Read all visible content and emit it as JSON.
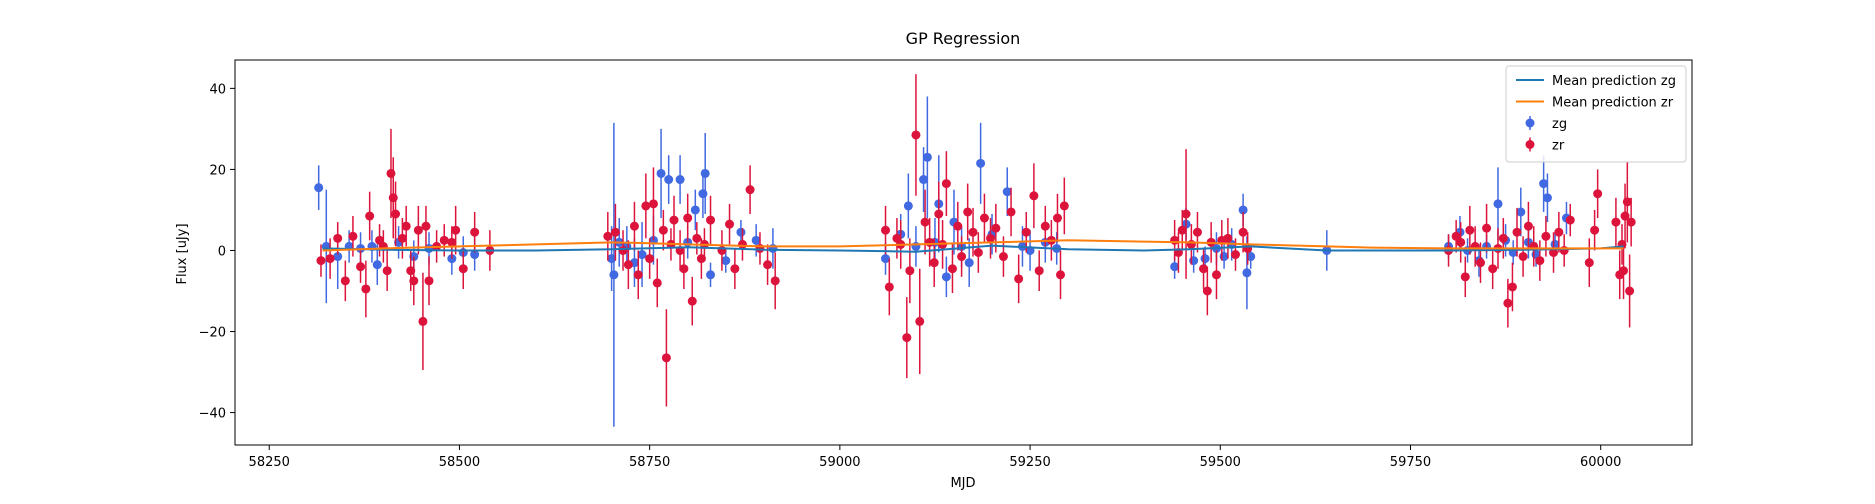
{
  "chart_data": {
    "type": "scatter",
    "title": "GP Regression",
    "xlabel": "MJD",
    "ylabel": "Flux [uJy]",
    "xlim": [
      58205,
      60120
    ],
    "ylim": [
      -48,
      47
    ],
    "xticks": [
      58250,
      58500,
      58750,
      59000,
      59250,
      59500,
      59750,
      60000
    ],
    "yticks": [
      -40,
      -20,
      0,
      20,
      40
    ],
    "grid": false,
    "legend_position": "top-right",
    "colors": {
      "mean_zg": "#1f77b4",
      "mean_zr": "#ff7f0e",
      "zg": "#4169e1",
      "zr": "#dc143c"
    },
    "legend": [
      {
        "label": "Mean prediction zg",
        "kind": "line",
        "color_key": "mean_zg"
      },
      {
        "label": "Mean prediction zr",
        "kind": "line",
        "color_key": "mean_zr"
      },
      {
        "label": "zg",
        "kind": "errorbar",
        "color_key": "zg"
      },
      {
        "label": "zr",
        "kind": "errorbar",
        "color_key": "zr"
      }
    ],
    "series": [
      {
        "name": "Mean prediction zg",
        "kind": "line",
        "color_key": "mean_zg",
        "x": [
          58320,
          58400,
          58500,
          58600,
          58700,
          58800,
          58900,
          59000,
          59100,
          59200,
          59300,
          59400,
          59460,
          59540,
          59640,
          59700,
          59800,
          59900,
          60000,
          60030
        ],
        "y": [
          0.5,
          0.2,
          0.0,
          0.0,
          0.3,
          0.8,
          0.2,
          0.0,
          -0.3,
          1.2,
          0.3,
          0.0,
          0.3,
          1.0,
          0.0,
          0.0,
          0.0,
          0.2,
          0.5,
          1.0
        ]
      },
      {
        "name": "Mean prediction zr",
        "kind": "line",
        "color_key": "mean_zr",
        "x": [
          58320,
          58400,
          58500,
          58600,
          58700,
          58750,
          58800,
          58900,
          59000,
          59100,
          59200,
          59300,
          59400,
          59460,
          59540,
          59640,
          59700,
          59800,
          59900,
          60000,
          60030
        ],
        "y": [
          0.0,
          0.5,
          1.0,
          1.5,
          2.0,
          1.8,
          1.5,
          1.0,
          1.0,
          1.5,
          2.0,
          2.5,
          2.2,
          2.0,
          1.5,
          1.0,
          0.7,
          0.5,
          0.5,
          0.5,
          0.5
        ]
      },
      {
        "name": "zg",
        "kind": "errorbar",
        "color_key": "zg",
        "points": [
          [
            58315,
            15.5,
            5.5
          ],
          [
            58325,
            1.0,
            14
          ],
          [
            58340,
            -1.5,
            8
          ],
          [
            58355,
            1.0,
            4
          ],
          [
            58370,
            0.5,
            4
          ],
          [
            58385,
            1.0,
            4
          ],
          [
            58392,
            -3.5,
            5
          ],
          [
            58420,
            2.0,
            4
          ],
          [
            58440,
            -1.5,
            4
          ],
          [
            58460,
            0.5,
            4
          ],
          [
            58490,
            -2.0,
            4
          ],
          [
            58505,
            -0.5,
            4
          ],
          [
            58520,
            -1.0,
            4
          ],
          [
            58700,
            -2.0,
            8
          ],
          [
            58703,
            -6.0,
            37.5
          ],
          [
            58710,
            2.0,
            6
          ],
          [
            58720,
            1.0,
            5
          ],
          [
            58730,
            -3.0,
            6
          ],
          [
            58740,
            -1.0,
            8
          ],
          [
            58755,
            2.5,
            6
          ],
          [
            58765,
            19.0,
            11
          ],
          [
            58775,
            17.5,
            6
          ],
          [
            58790,
            17.5,
            6
          ],
          [
            58800,
            2.0,
            4
          ],
          [
            58810,
            10.0,
            5
          ],
          [
            58820,
            14.0,
            6
          ],
          [
            58823,
            19.0,
            10
          ],
          [
            58830,
            -6.0,
            3
          ],
          [
            58850,
            -2.5,
            3
          ],
          [
            58870,
            4.5,
            3
          ],
          [
            58890,
            2.5,
            4
          ],
          [
            58912,
            0.5,
            5
          ],
          [
            59060,
            -2.0,
            4
          ],
          [
            59080,
            4.0,
            5
          ],
          [
            59090,
            11.0,
            8
          ],
          [
            59100,
            1.0,
            5
          ],
          [
            59110,
            17.5,
            8
          ],
          [
            59115,
            23.0,
            15
          ],
          [
            59125,
            2.0,
            6
          ],
          [
            59130,
            11.5,
            12
          ],
          [
            59140,
            -6.5,
            5
          ],
          [
            59150,
            7.0,
            8
          ],
          [
            59160,
            1.0,
            5
          ],
          [
            59170,
            -3.0,
            6
          ],
          [
            59185,
            21.5,
            10
          ],
          [
            59200,
            4.0,
            5
          ],
          [
            59220,
            14.5,
            6
          ],
          [
            59240,
            1.0,
            5
          ],
          [
            59250,
            0.0,
            5
          ],
          [
            59270,
            2.0,
            5
          ],
          [
            59285,
            0.5,
            4
          ],
          [
            59440,
            -4.0,
            3
          ],
          [
            59455,
            6.5,
            4
          ],
          [
            59465,
            -2.5,
            3
          ],
          [
            59480,
            -2.0,
            3
          ],
          [
            59495,
            0.5,
            4
          ],
          [
            59505,
            -1.5,
            3
          ],
          [
            59515,
            1.5,
            4
          ],
          [
            59530,
            10.0,
            4
          ],
          [
            59535,
            -5.5,
            9
          ],
          [
            59540,
            -1.5,
            3
          ],
          [
            59640,
            0.0,
            5
          ],
          [
            59800,
            1.0,
            3
          ],
          [
            59815,
            4.5,
            4
          ],
          [
            59825,
            0.0,
            3
          ],
          [
            59840,
            -2.5,
            4
          ],
          [
            59850,
            1.0,
            3
          ],
          [
            59865,
            11.5,
            9
          ],
          [
            59875,
            2.5,
            4
          ],
          [
            59885,
            -0.5,
            3
          ],
          [
            59895,
            9.5,
            6
          ],
          [
            59905,
            2.0,
            4
          ],
          [
            59915,
            -1.0,
            3
          ],
          [
            59925,
            16.5,
            7
          ],
          [
            59930,
            13.0,
            6
          ],
          [
            59940,
            1.5,
            3
          ],
          [
            59955,
            8.0,
            4
          ]
        ]
      },
      {
        "name": "zr",
        "kind": "errorbar",
        "color_key": "zr",
        "points": [
          [
            58318,
            -2.5,
            4
          ],
          [
            58330,
            -2.0,
            5
          ],
          [
            58340,
            3.0,
            4
          ],
          [
            58350,
            -7.5,
            5
          ],
          [
            58360,
            3.5,
            5
          ],
          [
            58370,
            -4.0,
            4
          ],
          [
            58377,
            -9.5,
            7
          ],
          [
            58382,
            8.5,
            6
          ],
          [
            58395,
            2.5,
            4
          ],
          [
            58400,
            1.0,
            4
          ],
          [
            58405,
            -5.0,
            5
          ],
          [
            58410,
            19.0,
            11
          ],
          [
            58413,
            13.0,
            10
          ],
          [
            58416,
            9.0,
            8
          ],
          [
            58425,
            3.0,
            5
          ],
          [
            58430,
            6.0,
            5
          ],
          [
            58436,
            -5.0,
            5
          ],
          [
            58440,
            -7.5,
            6
          ],
          [
            58446,
            5.0,
            6
          ],
          [
            58452,
            -17.5,
            12
          ],
          [
            58456,
            6.0,
            5
          ],
          [
            58460,
            -7.5,
            6
          ],
          [
            58470,
            1.0,
            4
          ],
          [
            58480,
            2.5,
            4
          ],
          [
            58490,
            2.0,
            4
          ],
          [
            58495,
            5.0,
            6
          ],
          [
            58505,
            -4.5,
            5
          ],
          [
            58520,
            4.5,
            5
          ],
          [
            58540,
            0.0,
            5
          ],
          [
            58695,
            3.5,
            6
          ],
          [
            58705,
            4.5,
            7
          ],
          [
            58715,
            0.0,
            5
          ],
          [
            58722,
            -3.5,
            6
          ],
          [
            58730,
            6.0,
            6
          ],
          [
            58735,
            -6.0,
            6
          ],
          [
            58745,
            11.0,
            8
          ],
          [
            58750,
            -2.0,
            5
          ],
          [
            58755,
            11.5,
            9
          ],
          [
            58760,
            -8.0,
            6
          ],
          [
            58768,
            5.0,
            5
          ],
          [
            58772,
            -26.5,
            12
          ],
          [
            58778,
            1.5,
            4
          ],
          [
            58782,
            7.5,
            6
          ],
          [
            58790,
            0.0,
            5
          ],
          [
            58795,
            -4.5,
            5
          ],
          [
            58800,
            8.0,
            6
          ],
          [
            58806,
            -12.5,
            6
          ],
          [
            58812,
            3.0,
            4
          ],
          [
            58818,
            -2.0,
            5
          ],
          [
            58822,
            1.5,
            4
          ],
          [
            58830,
            7.5,
            6
          ],
          [
            58845,
            0.0,
            5
          ],
          [
            58855,
            6.5,
            5
          ],
          [
            58862,
            -4.5,
            5
          ],
          [
            58872,
            1.5,
            4
          ],
          [
            58882,
            15.0,
            6
          ],
          [
            58895,
            0.5,
            4
          ],
          [
            58905,
            -3.5,
            5
          ],
          [
            58915,
            -7.5,
            7
          ],
          [
            59060,
            5.0,
            6
          ],
          [
            59065,
            -9.0,
            7
          ],
          [
            59075,
            3.0,
            5
          ],
          [
            59080,
            1.5,
            6
          ],
          [
            59088,
            -21.5,
            10
          ],
          [
            59092,
            -5.0,
            8
          ],
          [
            59100,
            28.5,
            15
          ],
          [
            59105,
            -17.5,
            13
          ],
          [
            59112,
            7.0,
            8
          ],
          [
            59118,
            2.0,
            6
          ],
          [
            59124,
            -3.0,
            6
          ],
          [
            59130,
            9.0,
            8
          ],
          [
            59135,
            1.5,
            6
          ],
          [
            59140,
            16.5,
            8
          ],
          [
            59148,
            -4.5,
            6
          ],
          [
            59155,
            6.0,
            6
          ],
          [
            59160,
            -1.5,
            5
          ],
          [
            59168,
            9.5,
            7
          ],
          [
            59175,
            4.5,
            6
          ],
          [
            59182,
            -0.5,
            5
          ],
          [
            59190,
            8.0,
            6
          ],
          [
            59198,
            3.0,
            5
          ],
          [
            59205,
            5.5,
            6
          ],
          [
            59215,
            -1.5,
            5
          ],
          [
            59225,
            9.5,
            6
          ],
          [
            59235,
            -7.0,
            6
          ],
          [
            59245,
            4.5,
            5
          ],
          [
            59255,
            13.5,
            8
          ],
          [
            59262,
            -5.0,
            5
          ],
          [
            59270,
            6.0,
            5
          ],
          [
            59278,
            2.5,
            5
          ],
          [
            59286,
            8.0,
            6
          ],
          [
            59290,
            -6.0,
            6
          ],
          [
            59295,
            11.0,
            7
          ],
          [
            59440,
            2.5,
            5
          ],
          [
            59445,
            -0.5,
            5
          ],
          [
            59450,
            5.0,
            5
          ],
          [
            59455,
            9.0,
            16
          ],
          [
            59462,
            1.5,
            5
          ],
          [
            59470,
            4.5,
            5
          ],
          [
            59478,
            -4.5,
            5
          ],
          [
            59483,
            -10.0,
            6
          ],
          [
            59488,
            2.0,
            5
          ],
          [
            59495,
            -6.0,
            6
          ],
          [
            59502,
            2.5,
            5
          ],
          [
            59510,
            3.0,
            5
          ],
          [
            59520,
            -1.0,
            4
          ],
          [
            59530,
            4.5,
            5
          ],
          [
            59536,
            0.5,
            4
          ],
          [
            59800,
            0.0,
            4
          ],
          [
            59810,
            3.5,
            4
          ],
          [
            59816,
            2.0,
            5
          ],
          [
            59822,
            -6.5,
            5
          ],
          [
            59828,
            5.0,
            6
          ],
          [
            59835,
            1.0,
            5
          ],
          [
            59842,
            -3.0,
            5
          ],
          [
            59850,
            5.5,
            6
          ],
          [
            59858,
            -4.5,
            5
          ],
          [
            59865,
            0.5,
            5
          ],
          [
            59872,
            3.0,
            5
          ],
          [
            59878,
            -13.0,
            6
          ],
          [
            59884,
            -9.0,
            6
          ],
          [
            59890,
            4.5,
            6
          ],
          [
            59898,
            -1.5,
            5
          ],
          [
            59905,
            6.0,
            6
          ],
          [
            59912,
            1.0,
            5
          ],
          [
            59920,
            -2.5,
            5
          ],
          [
            59928,
            3.5,
            5
          ],
          [
            59938,
            -0.5,
            5
          ],
          [
            59945,
            4.5,
            5
          ],
          [
            59952,
            0.0,
            4
          ],
          [
            59960,
            7.5,
            4
          ],
          [
            59985,
            -3.0,
            6
          ],
          [
            59992,
            5.0,
            5
          ],
          [
            59996,
            14.0,
            6
          ],
          [
            60020,
            7.0,
            6
          ],
          [
            60025,
            -6.0,
            6
          ],
          [
            60028,
            1.5,
            5
          ],
          [
            60030,
            -5.0,
            7
          ],
          [
            60032,
            8.5,
            8
          ],
          [
            60035,
            12.0,
            10
          ],
          [
            60038,
            -10.0,
            9
          ],
          [
            60040,
            7.0,
            6
          ]
        ]
      }
    ]
  }
}
